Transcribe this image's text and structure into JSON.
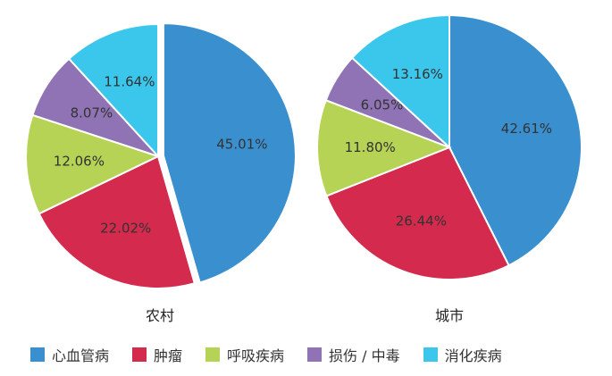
{
  "chart_data": [
    {
      "type": "pie",
      "title": "农村",
      "categories": [
        "心血管病",
        "肿瘤",
        "呼吸疾病",
        "损伤 / 中毒",
        "消化疾病"
      ],
      "values": [
        45.01,
        22.02,
        12.06,
        8.07,
        11.64
      ],
      "value_labels": [
        "45.01%",
        "22.02%",
        "12.06%",
        "8.07%",
        "11.64%"
      ],
      "exploded_slice": "心血管病"
    },
    {
      "type": "pie",
      "title": "城市",
      "categories": [
        "心血管病",
        "肿瘤",
        "呼吸疾病",
        "损伤 / 中毒",
        "消化疾病"
      ],
      "values": [
        42.61,
        26.44,
        11.8,
        6.05,
        13.16
      ],
      "value_labels": [
        "42.61%",
        "26.44%",
        "11.80%",
        "6.05%",
        "13.16%"
      ]
    }
  ],
  "legend": {
    "position": "bottom",
    "items": [
      {
        "label": "心血管病",
        "color": "#3a8fcf"
      },
      {
        "label": "肿瘤",
        "color": "#d42a4e"
      },
      {
        "label": "呼吸疾病",
        "color": "#b6d356"
      },
      {
        "label": "损伤 / 中毒",
        "color": "#8f73b4"
      },
      {
        "label": "消化疾病",
        "color": "#3bc6ec"
      }
    ]
  }
}
